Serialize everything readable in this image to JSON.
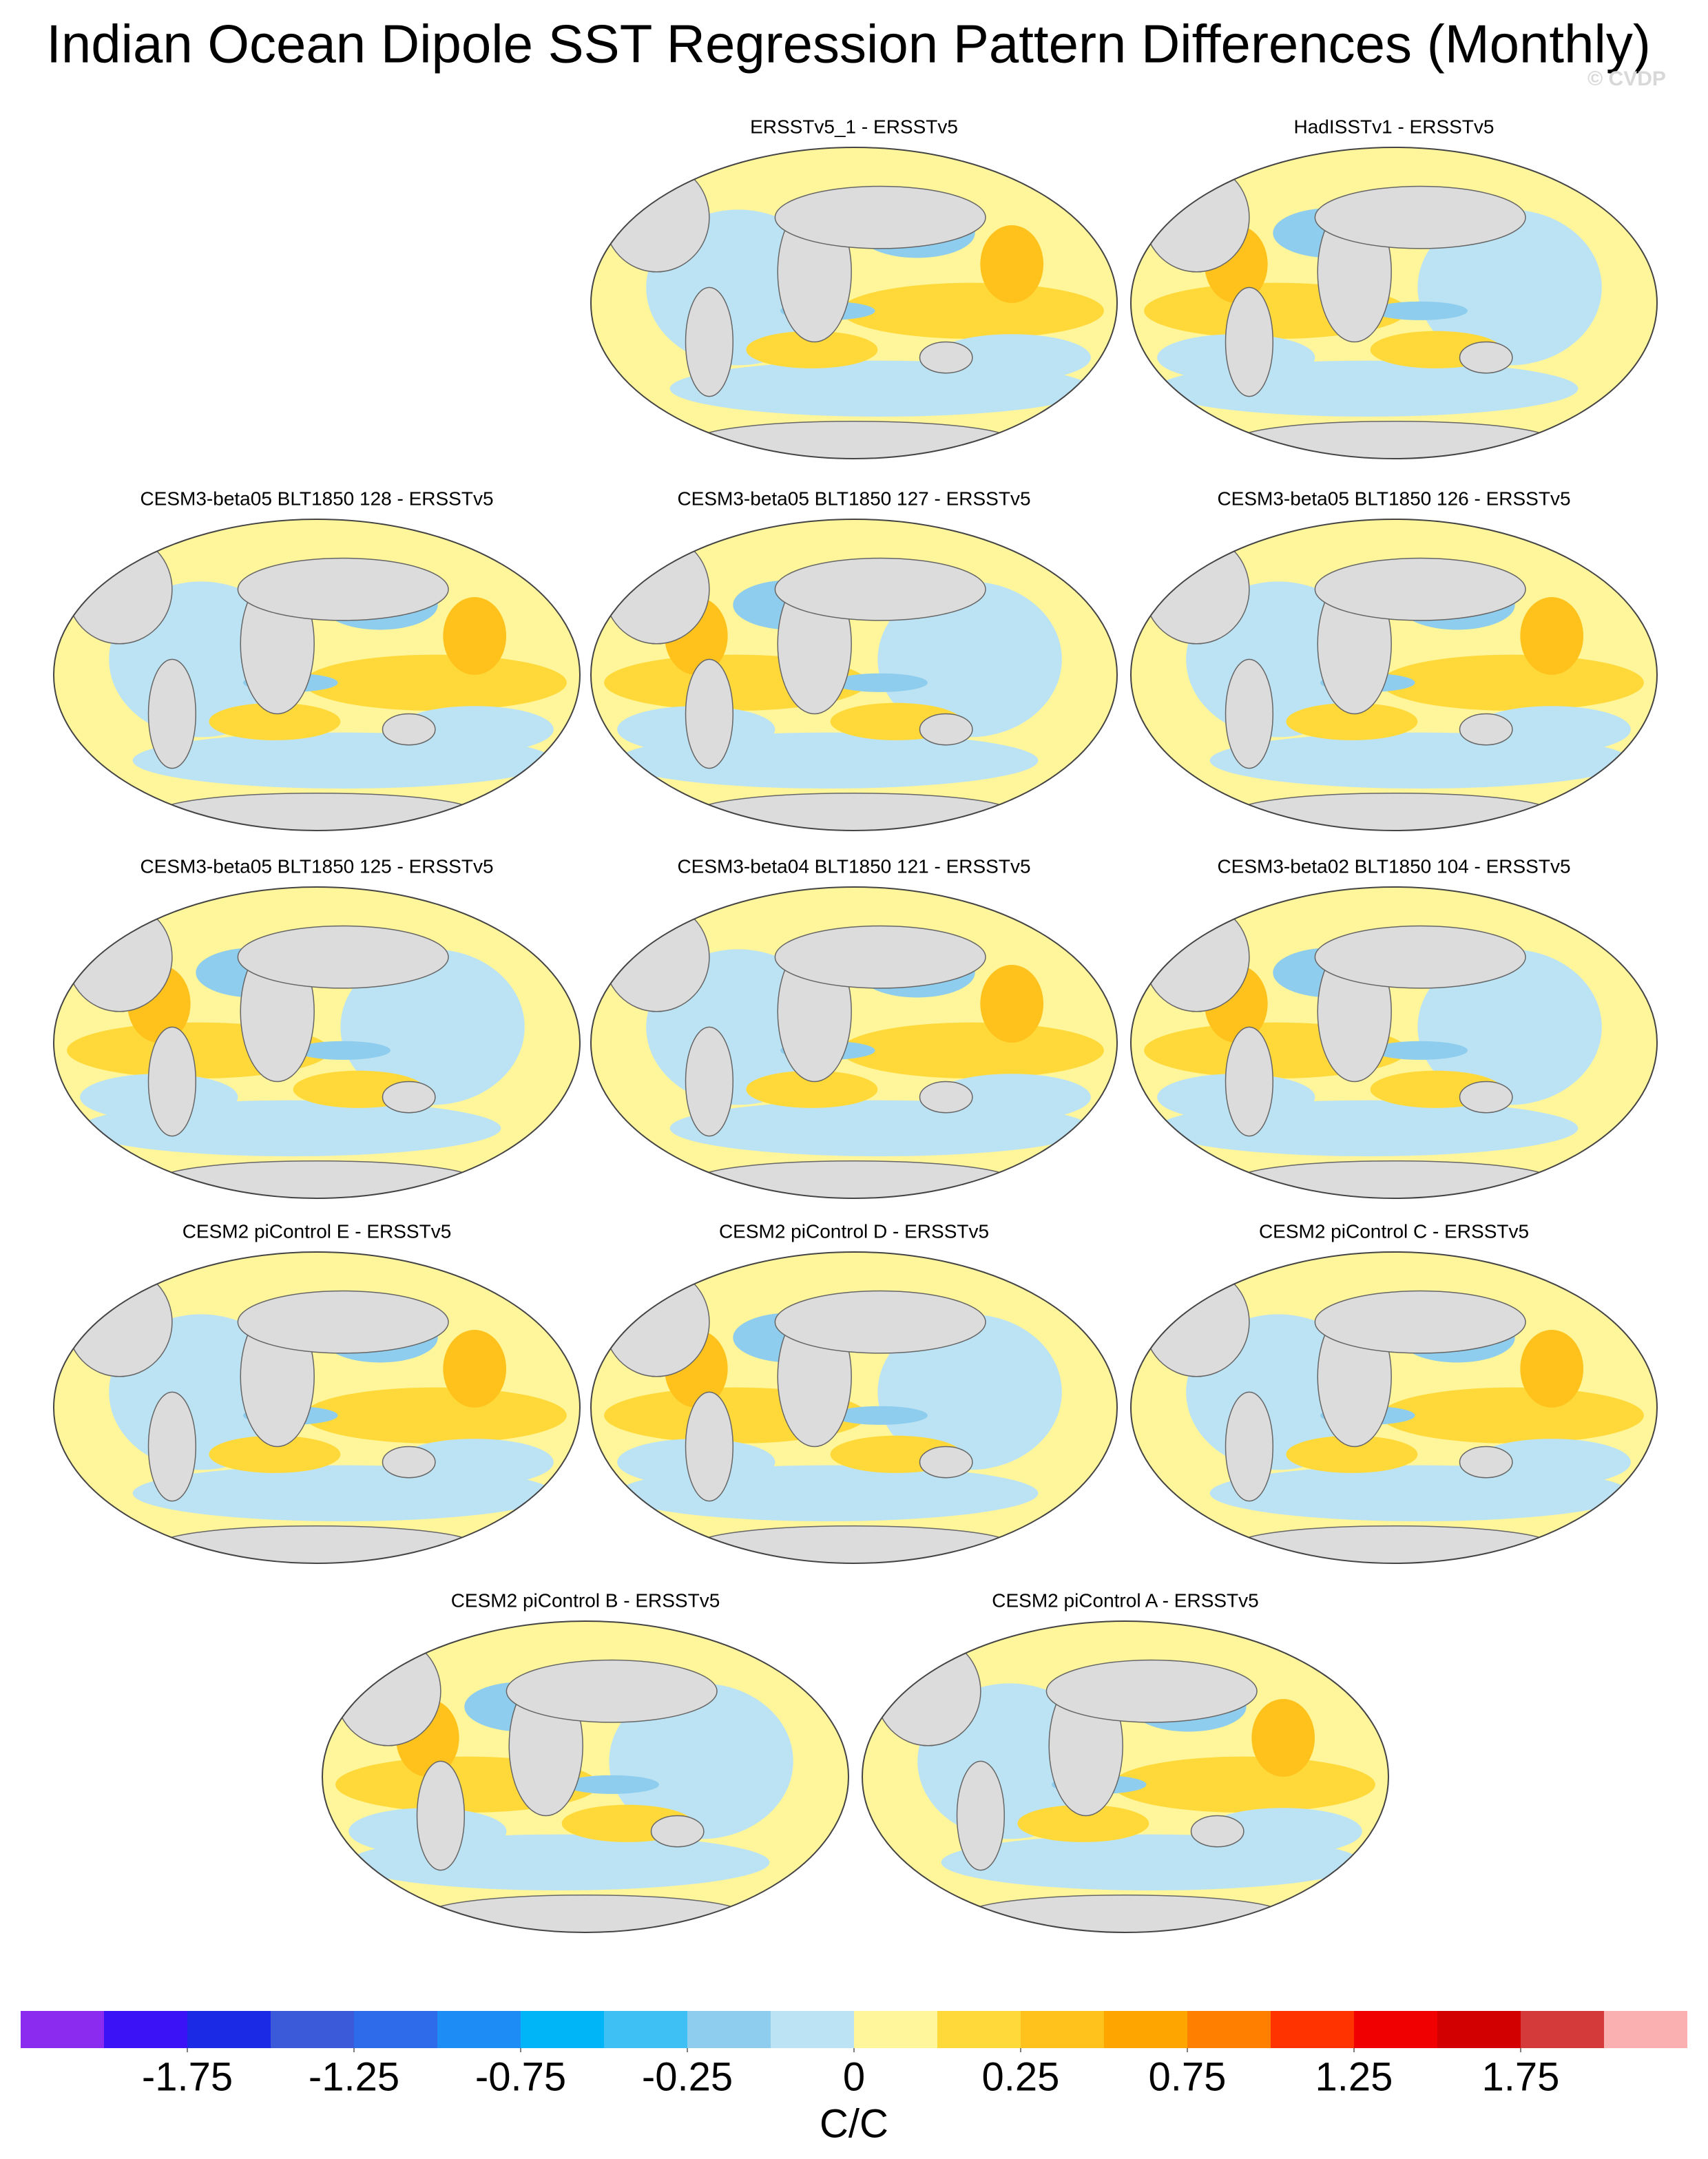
{
  "chart_data": {
    "type": "map-panels",
    "title": "Indian Ocean Dipole SST Regression Pattern Differences (Monthly)",
    "watermark": "© CVDP",
    "panels": [
      "ERSSTv5_1 - ERSSTv5",
      "HadISSTv1 - ERSSTv5",
      "CESM3-beta05 BLT1850 128 - ERSSTv5",
      "CESM3-beta05 BLT1850 127 - ERSSTv5",
      "CESM3-beta05 BLT1850 126 - ERSSTv5",
      "CESM3-beta05 BLT1850 125 - ERSSTv5",
      "CESM3-beta04 BLT1850 121 - ERSSTv5",
      "CESM3-beta02 BLT1850 104 - ERSSTv5",
      "CESM2 piControl E - ERSSTv5",
      "CESM2 piControl D - ERSSTv5",
      "CESM2 piControl C - ERSSTv5",
      "CESM2 piControl B - ERSSTv5",
      "CESM2 piControl A - ERSSTv5"
    ],
    "colorbar": {
      "unit": "C/C",
      "levels": [
        -2,
        -1.75,
        -1.5,
        -1.25,
        -1,
        -0.75,
        -0.5,
        -0.25,
        -0.1,
        0,
        0.1,
        0.25,
        0.5,
        0.75,
        1,
        1.25,
        1.5,
        1.75,
        2
      ],
      "ticks": [
        -1.75,
        -1.25,
        -0.75,
        -0.25,
        0,
        0.25,
        0.75,
        1.25,
        1.75
      ],
      "colors": [
        "#8a2bef",
        "#3a12f5",
        "#1a2ae5",
        "#3a5ada",
        "#2e6bea",
        "#1e8cf5",
        "#00b4f8",
        "#3ec0f5",
        "#8ecded",
        "#bce3f4",
        "#fff59a",
        "#ffd93a",
        "#ffc21c",
        "#ffa500",
        "#ff7f00",
        "#ff3300",
        "#f00000",
        "#d20000",
        "#d43a3a",
        "#fab0b0"
      ]
    }
  }
}
